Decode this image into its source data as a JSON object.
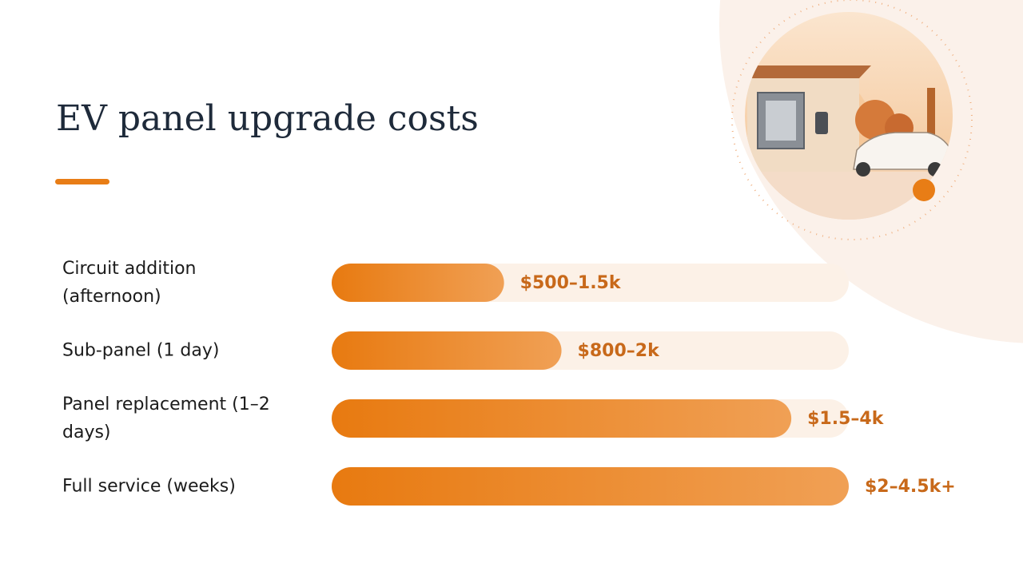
{
  "chart_data": {
    "type": "bar",
    "orientation": "horizontal",
    "title": "EV panel upgrade costs",
    "categories": [
      "Circuit addition (afternoon)",
      "Sub-panel (1 day)",
      "Panel replacement (1–2 days)",
      "Full service (weeks)"
    ],
    "values": [
      1500,
      2000,
      4000,
      4500
    ],
    "value_labels": [
      "$500–1.5k",
      "$800–2k",
      "$1.5–4k",
      "$2–4.5k+"
    ],
    "xlim": [
      0,
      4500
    ],
    "color": "#e87d16",
    "track_color": "#fcf1e7"
  }
}
